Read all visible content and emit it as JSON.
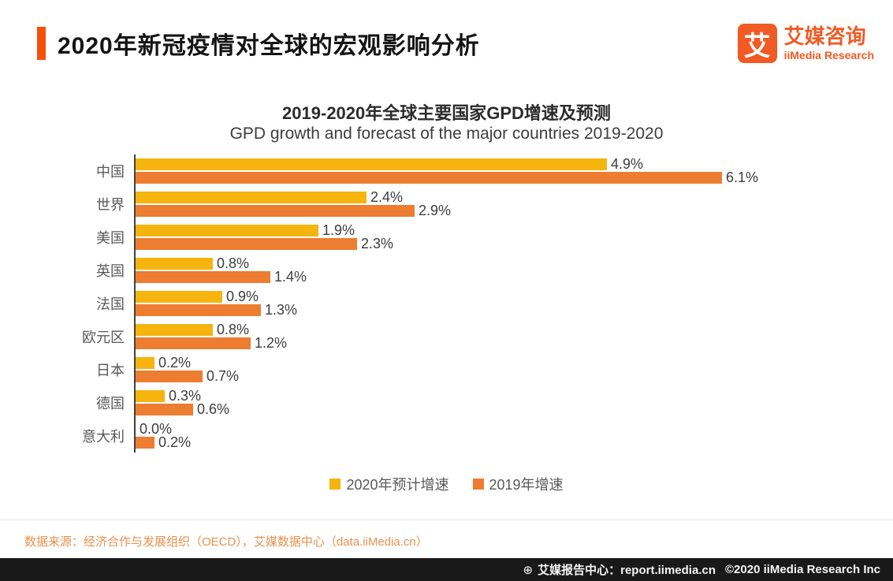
{
  "header": {
    "title": "2020年新冠疫情对全球的宏观影响分析"
  },
  "brand": {
    "mark": "艾",
    "name_cn": "艾媒咨询",
    "name_en": "iiMedia Research"
  },
  "chart_data": {
    "type": "bar",
    "orientation": "horizontal",
    "title": "2019-2020年全球主要国家GPD增速及预测",
    "subtitle": "GPD growth and forecast of the major countries 2019-2020",
    "categories": [
      "中国",
      "世界",
      "美国",
      "英国",
      "法国",
      "欧元区",
      "日本",
      "德国",
      "意大利"
    ],
    "series": [
      {
        "name": "2020年预计增速",
        "color": "#F5B40E",
        "values": [
          4.9,
          2.4,
          1.9,
          0.8,
          0.9,
          0.8,
          0.2,
          0.3,
          0.0
        ]
      },
      {
        "name": "2019年增速",
        "color": "#ED7D31",
        "values": [
          6.1,
          2.9,
          2.3,
          1.4,
          1.3,
          1.2,
          0.7,
          0.6,
          0.2
        ]
      }
    ],
    "value_format": "one_decimal_percent",
    "xlim": [
      0,
      6.5
    ],
    "grid": false,
    "legend_position": "bottom"
  },
  "colors": {
    "accent_orange": "#F4500C",
    "brand_orange": "#F15A24",
    "bar_yellow": "#F5B40E",
    "bar_orange": "#ED7D31",
    "axis_line": "#404040",
    "source_text": "#E8914C",
    "footer_bg": "#191919"
  },
  "source": {
    "text": "数据来源：经济合作与发展组织（OECD），艾媒数据中心（data.iiMedia.cn）"
  },
  "footer": {
    "site": "艾媒报告中心：report.iimedia.cn",
    "copyright": "©2020  iiMedia Research Inc",
    "icon_glyph": "⊕"
  }
}
